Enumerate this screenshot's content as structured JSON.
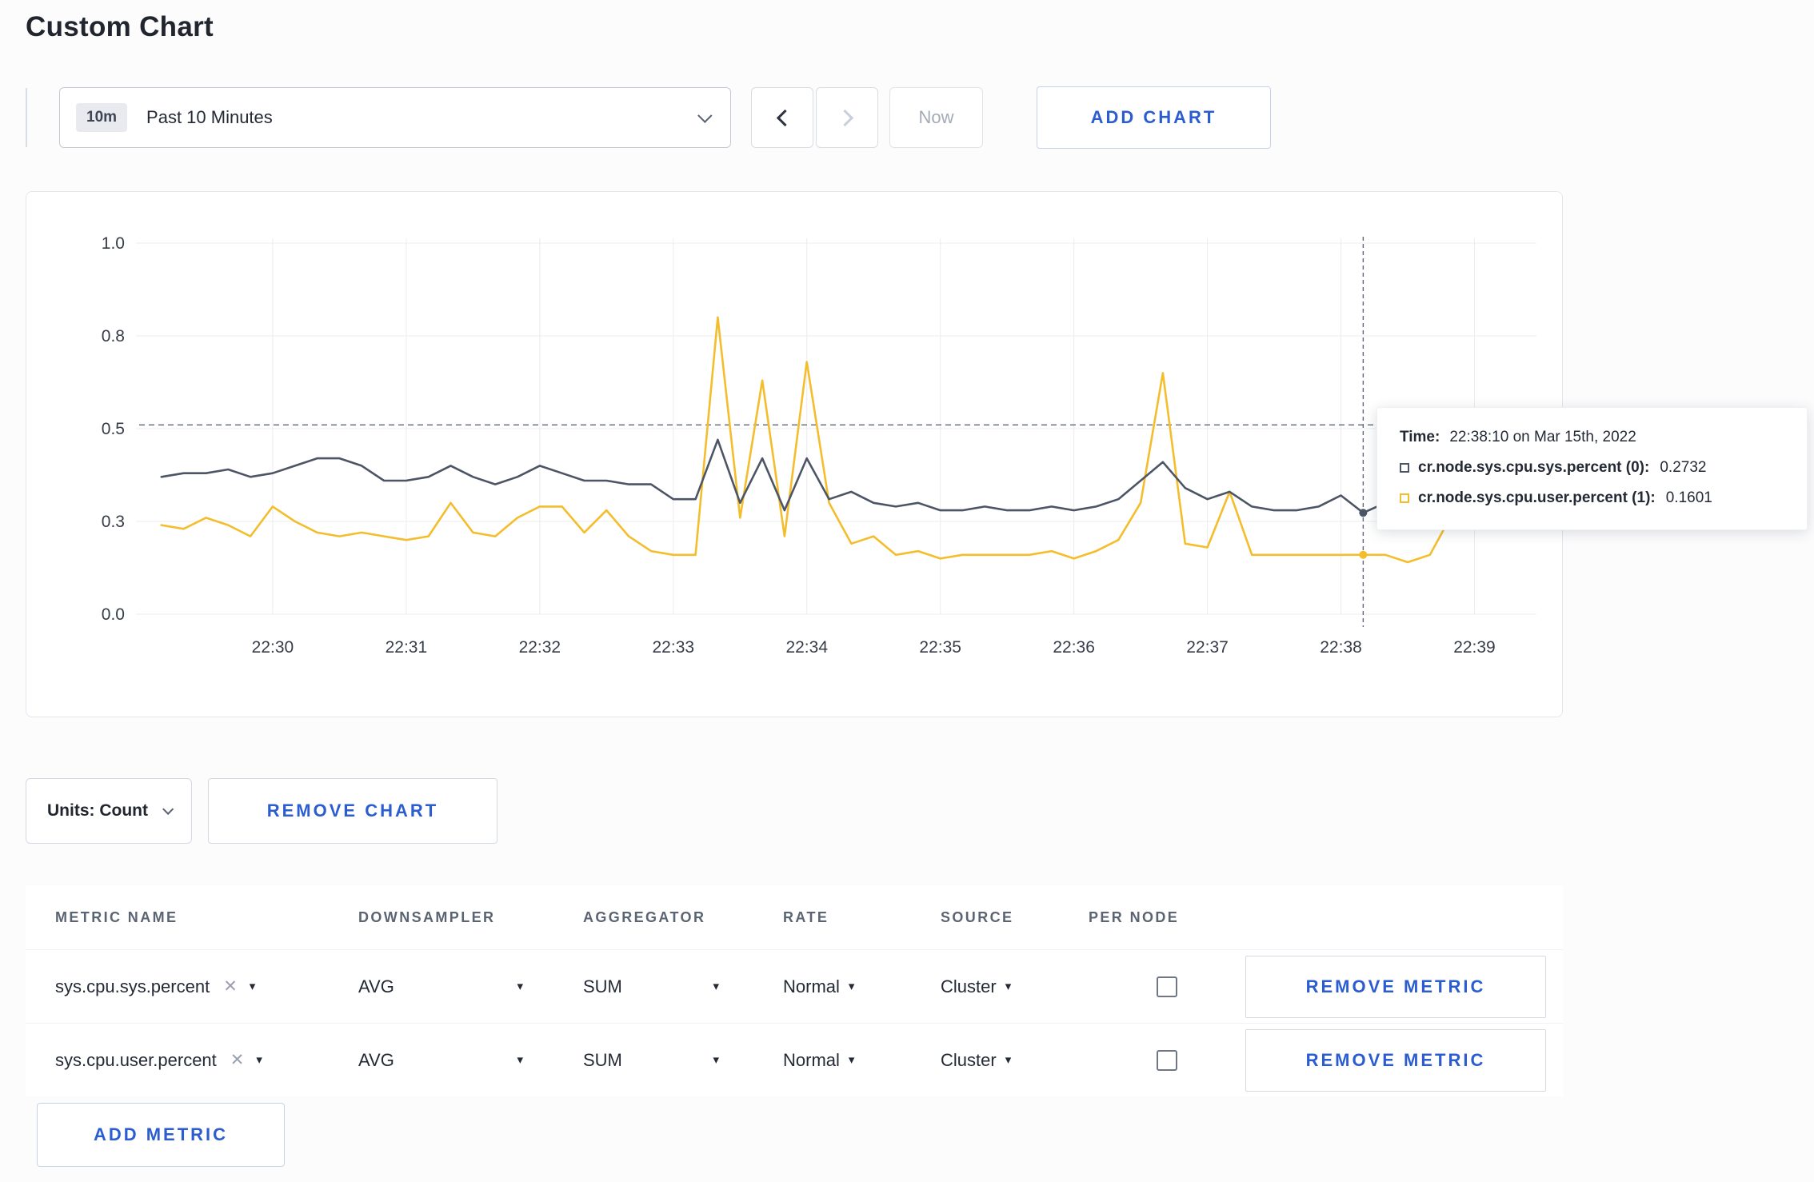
{
  "page": {
    "title": "Custom Chart"
  },
  "toolbar": {
    "time_badge": "10m",
    "time_range_label": "Past 10 Minutes",
    "now_label": "Now",
    "add_chart_label": "ADD CHART",
    "icons": {
      "dropdown": "chevron-down-icon",
      "prev": "chevron-left-icon",
      "next": "chevron-right-icon"
    }
  },
  "chart": {
    "tooltip": {
      "time_label": "Time:",
      "time_value": "22:38:10 on Mar 15th, 2022",
      "series": [
        {
          "label": "cr.node.sys.cpu.sys.percent (0):",
          "value": "0.2732",
          "color": "#4c5566"
        },
        {
          "label": "cr.node.sys.cpu.user.percent (1):",
          "value": "0.1601",
          "color": "#f3bd2c"
        }
      ]
    }
  },
  "chart_data": {
    "type": "line",
    "x_domain": [
      "22:29:00",
      "22:39:16"
    ],
    "x_ticks": [
      "22:30",
      "22:31",
      "22:32",
      "22:33",
      "22:34",
      "22:35",
      "22:36",
      "22:37",
      "22:38",
      "22:39"
    ],
    "y_ticks": [
      {
        "value": 0.0,
        "label": "0.0"
      },
      {
        "value": 0.25,
        "label": "0.3"
      },
      {
        "value": 0.5,
        "label": "0.5"
      },
      {
        "value": 0.75,
        "label": "0.8"
      },
      {
        "value": 1.0,
        "label": "1.0"
      }
    ],
    "ylim": [
      0,
      1.0
    ],
    "grid": true,
    "legend_position": "tooltip",
    "threshold_line": {
      "value": 0.51,
      "style": "dashed"
    },
    "crosshair": {
      "time": "22:38:10"
    },
    "start_time": "22:29:10",
    "interval_seconds": 10,
    "series": [
      {
        "name": "cr.node.sys.cpu.sys.percent",
        "color": "#4c5566",
        "values": [
          0.37,
          0.38,
          0.38,
          0.39,
          0.37,
          0.38,
          0.4,
          0.42,
          0.42,
          0.4,
          0.36,
          0.36,
          0.37,
          0.4,
          0.37,
          0.35,
          0.37,
          0.4,
          0.38,
          0.36,
          0.36,
          0.35,
          0.35,
          0.31,
          0.31,
          0.47,
          0.3,
          0.42,
          0.28,
          0.42,
          0.31,
          0.33,
          0.3,
          0.29,
          0.3,
          0.28,
          0.28,
          0.29,
          0.28,
          0.28,
          0.29,
          0.28,
          0.29,
          0.31,
          0.36,
          0.41,
          0.34,
          0.31,
          0.33,
          0.29,
          0.28,
          0.28,
          0.29,
          0.32,
          0.2732,
          0.3,
          0.31,
          0.3,
          0.3,
          0.31
        ]
      },
      {
        "name": "cr.node.sys.cpu.user.percent",
        "color": "#f3bd2c",
        "values": [
          0.24,
          0.23,
          0.26,
          0.24,
          0.21,
          0.29,
          0.25,
          0.22,
          0.21,
          0.22,
          0.21,
          0.2,
          0.21,
          0.3,
          0.22,
          0.21,
          0.26,
          0.29,
          0.29,
          0.22,
          0.28,
          0.21,
          0.17,
          0.16,
          0.16,
          0.8,
          0.26,
          0.63,
          0.21,
          0.68,
          0.3,
          0.19,
          0.21,
          0.16,
          0.17,
          0.15,
          0.16,
          0.16,
          0.16,
          0.16,
          0.17,
          0.15,
          0.17,
          0.2,
          0.3,
          0.65,
          0.19,
          0.18,
          0.33,
          0.16,
          0.16,
          0.16,
          0.16,
          0.16,
          0.1601,
          0.16,
          0.14,
          0.16,
          0.27,
          0.23
        ]
      }
    ]
  },
  "chart_controls": {
    "units_label": "Units: Count",
    "remove_chart_label": "REMOVE CHART",
    "icons": {
      "units": "chevron-down-icon"
    }
  },
  "metrics_table": {
    "headers": [
      "METRIC NAME",
      "DOWNSAMPLER",
      "AGGREGATOR",
      "RATE",
      "SOURCE",
      "PER NODE"
    ],
    "rows": [
      {
        "metric": "sys.cpu.sys.percent",
        "downsampler": "AVG",
        "aggregator": "SUM",
        "rate": "Normal",
        "source": "Cluster",
        "per_node_checked": false,
        "remove_label": "REMOVE METRIC"
      },
      {
        "metric": "sys.cpu.user.percent",
        "downsampler": "AVG",
        "aggregator": "SUM",
        "rate": "Normal",
        "source": "Cluster",
        "per_node_checked": false,
        "remove_label": "REMOVE METRIC"
      }
    ],
    "add_metric_label": "ADD METRIC"
  }
}
